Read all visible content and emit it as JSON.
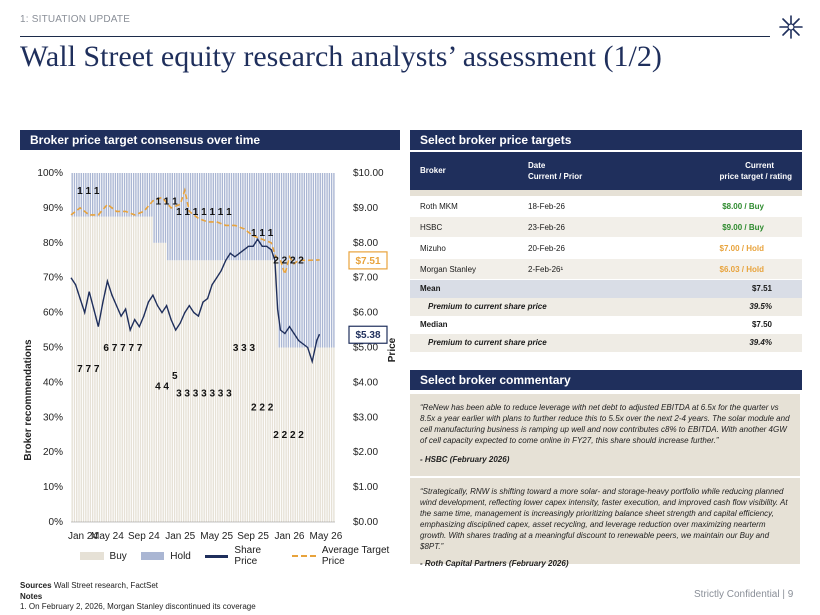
{
  "section": "1: SITUATION UPDATE",
  "title": "Wall Street equity research analysts’ assessment (1/2)",
  "left_panel": {
    "title": "Broker price target consensus over time"
  },
  "right_panel": {
    "title": "Select broker price targets",
    "commentary_title": "Select broker commentary"
  },
  "chart_data": {
    "type": "bar",
    "title": "",
    "ylabel": "Broker recommendations",
    "y2label": "Price",
    "ylim": [
      0,
      100
    ],
    "y2lim": [
      0,
      10
    ],
    "y_ticks": [
      "0%",
      "10%",
      "20%",
      "30%",
      "40%",
      "50%",
      "60%",
      "70%",
      "80%",
      "90%",
      "100%"
    ],
    "y2_ticks": [
      "$0.00",
      "$1.00",
      "$2.00",
      "$3.00",
      "$4.00",
      "$5.00",
      "$6.00",
      "$7.00",
      "$8.00",
      "$9.00",
      "$10.00"
    ],
    "x_ticks": [
      "Jan 24",
      "May 24",
      "Sep 24",
      "Jan 25",
      "May 25",
      "Sep 25",
      "Jan 26",
      "May 26"
    ],
    "x_range_months": [
      0,
      29
    ],
    "legend": [
      "Buy",
      "Hold",
      "Share Price",
      "Average Target Price"
    ],
    "legend_position": "bottom",
    "colors": {
      "buy": "#e6e1d6",
      "hold": "#aab6d3",
      "share_price": "#1f2f5c",
      "target": "#e8a33c"
    },
    "bar_periods": [
      {
        "x0": 0.0,
        "x1": 3.2,
        "buy_pct": 87.5
      },
      {
        "x0": 3.2,
        "x1": 6.0,
        "buy_pct": 87.5
      },
      {
        "x0": 6.0,
        "x1": 8.8,
        "buy_pct": 87.5
      },
      {
        "x0": 8.8,
        "x1": 10.5,
        "buy_pct": 80.0
      },
      {
        "x0": 10.5,
        "x1": 17.0,
        "buy_pct": 75.0
      },
      {
        "x0": 17.0,
        "x1": 19.5,
        "buy_pct": 75.0
      },
      {
        "x0": 19.5,
        "x1": 22.6,
        "buy_pct": 75.0
      },
      {
        "x0": 22.6,
        "x1": 24.5,
        "buy_pct": 50.0
      },
      {
        "x0": 24.5,
        "x1": 29.0,
        "buy_pct": 50.0
      }
    ],
    "count_labels": [
      {
        "text": "1 1 1",
        "x": 1.9,
        "y": 94
      },
      {
        "text": "7 7 7",
        "x": 1.9,
        "y": 43
      },
      {
        "text": "6 7 7 7 7",
        "x": 5.7,
        "y": 49
      },
      {
        "text": "1 1 1",
        "x": 10.5,
        "y": 91
      },
      {
        "text": "4 4",
        "x": 10.0,
        "y": 38
      },
      {
        "text": "5",
        "x": 11.4,
        "y": 41
      },
      {
        "text": "1 1 1 1 1 1 1",
        "x": 14.6,
        "y": 88
      },
      {
        "text": "3 3 3 3 3 3 3",
        "x": 14.6,
        "y": 36
      },
      {
        "text": "3 3 3",
        "x": 19.0,
        "y": 49
      },
      {
        "text": "1 1 1",
        "x": 21.0,
        "y": 82
      },
      {
        "text": "2 2 2",
        "x": 21.0,
        "y": 32
      },
      {
        "text": "2 2 2 2",
        "x": 23.9,
        "y": 74
      },
      {
        "text": "2 2 2 2",
        "x": 23.9,
        "y": 24
      }
    ],
    "share_price": [
      [
        0.0,
        7.0
      ],
      [
        0.5,
        6.8
      ],
      [
        1.0,
        6.4
      ],
      [
        1.5,
        6.0
      ],
      [
        2.0,
        6.6
      ],
      [
        2.5,
        6.1
      ],
      [
        3.0,
        5.6
      ],
      [
        3.5,
        6.3
      ],
      [
        4.0,
        6.9
      ],
      [
        4.5,
        6.5
      ],
      [
        5.0,
        6.2
      ],
      [
        5.5,
        5.9
      ],
      [
        6.0,
        6.1
      ],
      [
        6.5,
        5.5
      ],
      [
        7.0,
        5.8
      ],
      [
        7.5,
        5.6
      ],
      [
        8.0,
        5.9
      ],
      [
        8.5,
        6.3
      ],
      [
        9.0,
        6.5
      ],
      [
        9.5,
        6.2
      ],
      [
        10.0,
        6.0
      ],
      [
        10.5,
        6.2
      ],
      [
        11.0,
        5.8
      ],
      [
        11.5,
        5.5
      ],
      [
        12.0,
        5.7
      ],
      [
        12.5,
        6.0
      ],
      [
        13.0,
        6.2
      ],
      [
        13.5,
        6.0
      ],
      [
        14.0,
        5.9
      ],
      [
        14.5,
        6.3
      ],
      [
        15.0,
        6.4
      ],
      [
        15.5,
        6.8
      ],
      [
        16.0,
        7.0
      ],
      [
        16.5,
        7.2
      ],
      [
        17.0,
        7.5
      ],
      [
        17.5,
        7.7
      ],
      [
        18.0,
        7.6
      ],
      [
        18.5,
        7.7
      ],
      [
        19.0,
        7.8
      ],
      [
        19.5,
        7.9
      ],
      [
        20.0,
        7.9
      ],
      [
        20.5,
        8.1
      ],
      [
        21.0,
        7.9
      ],
      [
        21.5,
        7.9
      ],
      [
        22.0,
        7.8
      ],
      [
        22.4,
        7.5
      ],
      [
        22.7,
        6.1
      ],
      [
        23.0,
        5.5
      ],
      [
        23.5,
        5.4
      ],
      [
        24.0,
        5.6
      ],
      [
        24.5,
        5.4
      ],
      [
        25.0,
        5.2
      ],
      [
        25.5,
        5.1
      ],
      [
        26.0,
        5.0
      ],
      [
        26.5,
        4.6
      ],
      [
        27.0,
        5.2
      ],
      [
        27.3,
        5.38
      ]
    ],
    "avg_target_price": [
      [
        0.0,
        8.8
      ],
      [
        1.0,
        9.0
      ],
      [
        2.0,
        8.8
      ],
      [
        3.0,
        8.8
      ],
      [
        4.0,
        9.1
      ],
      [
        5.0,
        8.9
      ],
      [
        6.0,
        8.9
      ],
      [
        7.0,
        8.8
      ],
      [
        8.0,
        8.9
      ],
      [
        9.0,
        9.2
      ],
      [
        10.0,
        9.3
      ],
      [
        11.0,
        9.0
      ],
      [
        12.0,
        9.1
      ],
      [
        12.5,
        9.5
      ],
      [
        13.0,
        8.9
      ],
      [
        14.0,
        8.7
      ],
      [
        15.0,
        8.6
      ],
      [
        16.0,
        8.6
      ],
      [
        17.0,
        8.5
      ],
      [
        18.0,
        8.5
      ],
      [
        19.0,
        8.4
      ],
      [
        20.0,
        8.2
      ],
      [
        21.0,
        8.1
      ],
      [
        22.0,
        8.0
      ],
      [
        22.5,
        7.6
      ],
      [
        23.0,
        7.5
      ],
      [
        23.5,
        7.1
      ],
      [
        24.0,
        7.6
      ],
      [
        24.5,
        7.4
      ],
      [
        25.0,
        7.5
      ],
      [
        26.0,
        7.5
      ],
      [
        27.3,
        7.51
      ]
    ],
    "callouts": {
      "target": "$7.51",
      "share": "$5.38"
    }
  },
  "table": {
    "headers": {
      "broker": "Broker",
      "date_line1": "Date",
      "date_line2": "Current / Prior",
      "target_line1": "Current",
      "target_line2": "price target / rating"
    },
    "rows": [
      {
        "broker": "Roth MKM",
        "date": "18-Feb-26",
        "target": "$8.00 / Buy",
        "color": "#2e8b2e",
        "shade": "#ffffff"
      },
      {
        "broker": "HSBC",
        "date": "23-Feb-26",
        "target": "$9.00 / Buy",
        "color": "#2e8b2e",
        "shade": "#f2efe9"
      },
      {
        "broker": "Mizuho",
        "date": "20-Feb-26",
        "target": "$7.00 / Hold",
        "color": "#e8a33c",
        "shade": "#ffffff"
      },
      {
        "broker": "Morgan Stanley",
        "date": "2-Feb-26¹",
        "target": "$6.03 / Hold",
        "color": "#e8a33c",
        "shade": "#f2efe9"
      }
    ],
    "summary": [
      {
        "label": "Mean",
        "value": "$7.51",
        "bold": true,
        "shade": "#d9dde6"
      },
      {
        "label": "Premium to current share price",
        "value": "39.5%",
        "bold": false,
        "shade": "#efece5"
      },
      {
        "label": "Median",
        "value": "$7.50",
        "bold": true,
        "shade": "#ffffff"
      },
      {
        "label": "Premium to current share price",
        "value": "39.4%",
        "bold": false,
        "shade": "#efece5"
      }
    ]
  },
  "commentary": [
    {
      "quote": "“ReNew has been able to reduce leverage with net debt to adjusted EBITDA at 6.5x for the quarter vs 8.5x a year earlier with plans to further reduce this to 5.5x over the next 2-4 years. The solar module and cell manufacturing business is ramping up well and now contributes c8% to EBITDA. With another 4GW of cell capacity expected to come online in FY27, this share should increase further.”",
      "source": "- HSBC (February 2026)"
    },
    {
      "quote": "“Strategically, RNW is shifting toward a more solar- and storage-heavy portfolio while reducing planned wind development, reflecting lower capex intensity, faster execution, and improved cash flow visibility. At the same time, management is increasingly prioritizing balance sheet strength and capital efficiency, emphasizing disciplined capex, asset recycling, and leverage reduction over maximizing nearterm growth. With shares trading at a meaningful discount to renewable peers, we maintain our Buy and $8PT.”",
      "source": "- Roth Capital Partners (February 2026)"
    }
  ],
  "footer": {
    "sources_label": "Sources",
    "sources": "Wall Street research, FactSet",
    "notes_label": "Notes",
    "note_1": "1.    On February 2, 2026, Morgan Stanley discontinued its coverage",
    "confidential": "Strictly Confidential |   9"
  }
}
